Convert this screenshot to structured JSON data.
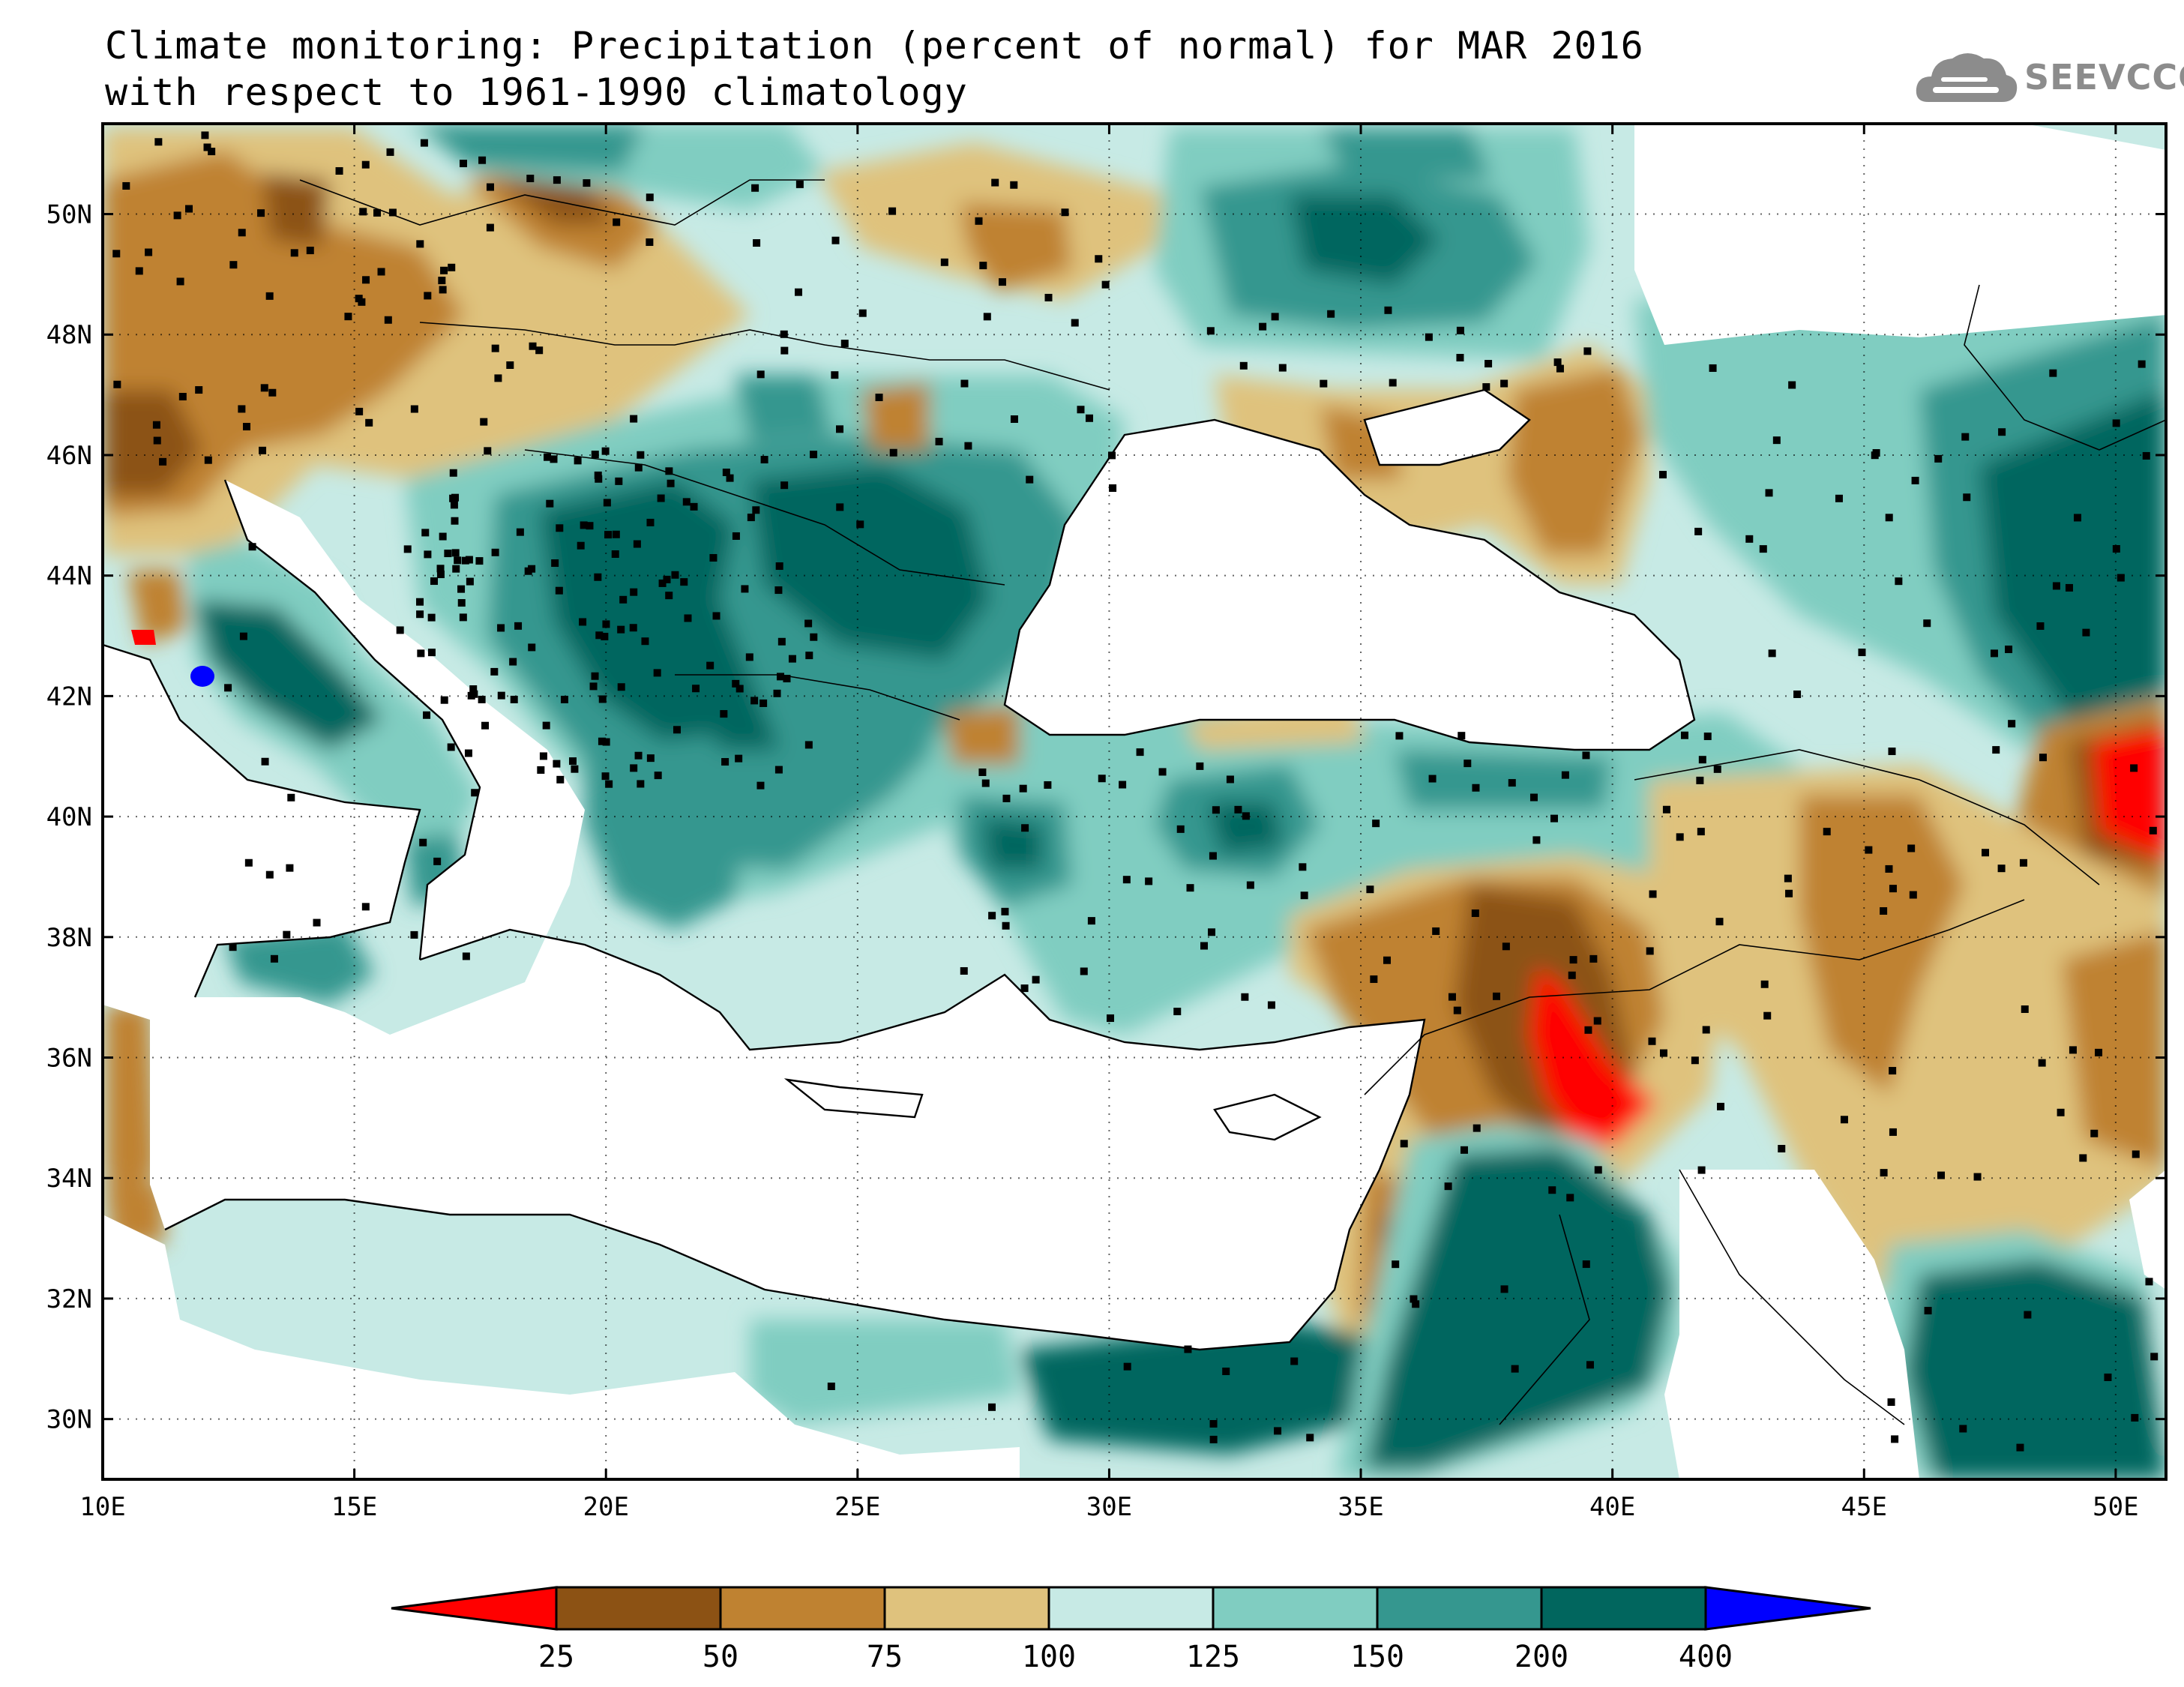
{
  "title": {
    "line1": "Climate monitoring: Precipitation (percent of normal) for MAR 2016",
    "line2": "with respect to 1961-1990 climatology"
  },
  "logo": {
    "text": "SEEVCCC",
    "icon": "cloud-icon"
  },
  "map": {
    "lon_range": [
      10,
      51
    ],
    "lat_range": [
      29,
      51.5
    ],
    "lon_ticks": [
      "10E",
      "15E",
      "20E",
      "25E",
      "30E",
      "35E",
      "40E",
      "45E",
      "50E"
    ],
    "lat_ticks": [
      "30N",
      "32N",
      "34N",
      "36N",
      "38N",
      "40N",
      "42N",
      "44N",
      "46N",
      "48N",
      "50N"
    ]
  },
  "colorbar": {
    "labels": [
      "25",
      "50",
      "75",
      "100",
      "125",
      "150",
      "200",
      "400"
    ],
    "colors": {
      "below_25": "#ff0000",
      "25_50": "#8c5214",
      "50_75": "#bf8231",
      "75_100": "#dfc27d",
      "100_125": "#c7eae5",
      "125_150": "#80cdc1",
      "150_200": "#35978f",
      "200_400": "#01665e",
      "above_400": "#0000ff"
    }
  }
}
